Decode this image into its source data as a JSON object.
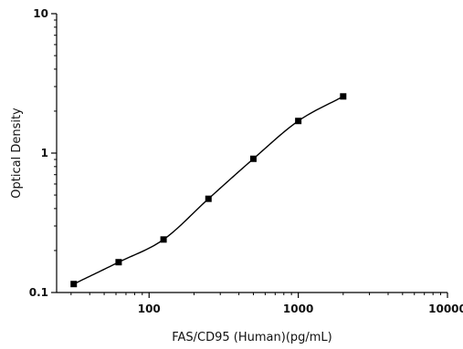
{
  "chart_data": {
    "type": "scatter",
    "xlabel": "FAS/CD95 (Human)(pg/mL)",
    "ylabel": "Optical Density",
    "x_scale": "log",
    "y_scale": "log",
    "xlim": [
      24,
      10000
    ],
    "ylim": [
      0.1,
      10
    ],
    "x_ticks": [
      100,
      1000,
      10000
    ],
    "x_tick_labels": [
      "100",
      "1000",
      "10000"
    ],
    "y_ticks": [
      0.1,
      1,
      10
    ],
    "y_tick_labels": [
      "0.1",
      "1",
      "10"
    ],
    "grid": false,
    "series": [
      {
        "x": [
          31.25,
          62.5,
          125,
          250,
          500,
          1000,
          2000
        ],
        "y": [
          0.115,
          0.165,
          0.24,
          0.47,
          0.91,
          1.7,
          2.55
        ],
        "marker": "square",
        "fit": "4PL curve",
        "color": "#000000"
      }
    ]
  }
}
